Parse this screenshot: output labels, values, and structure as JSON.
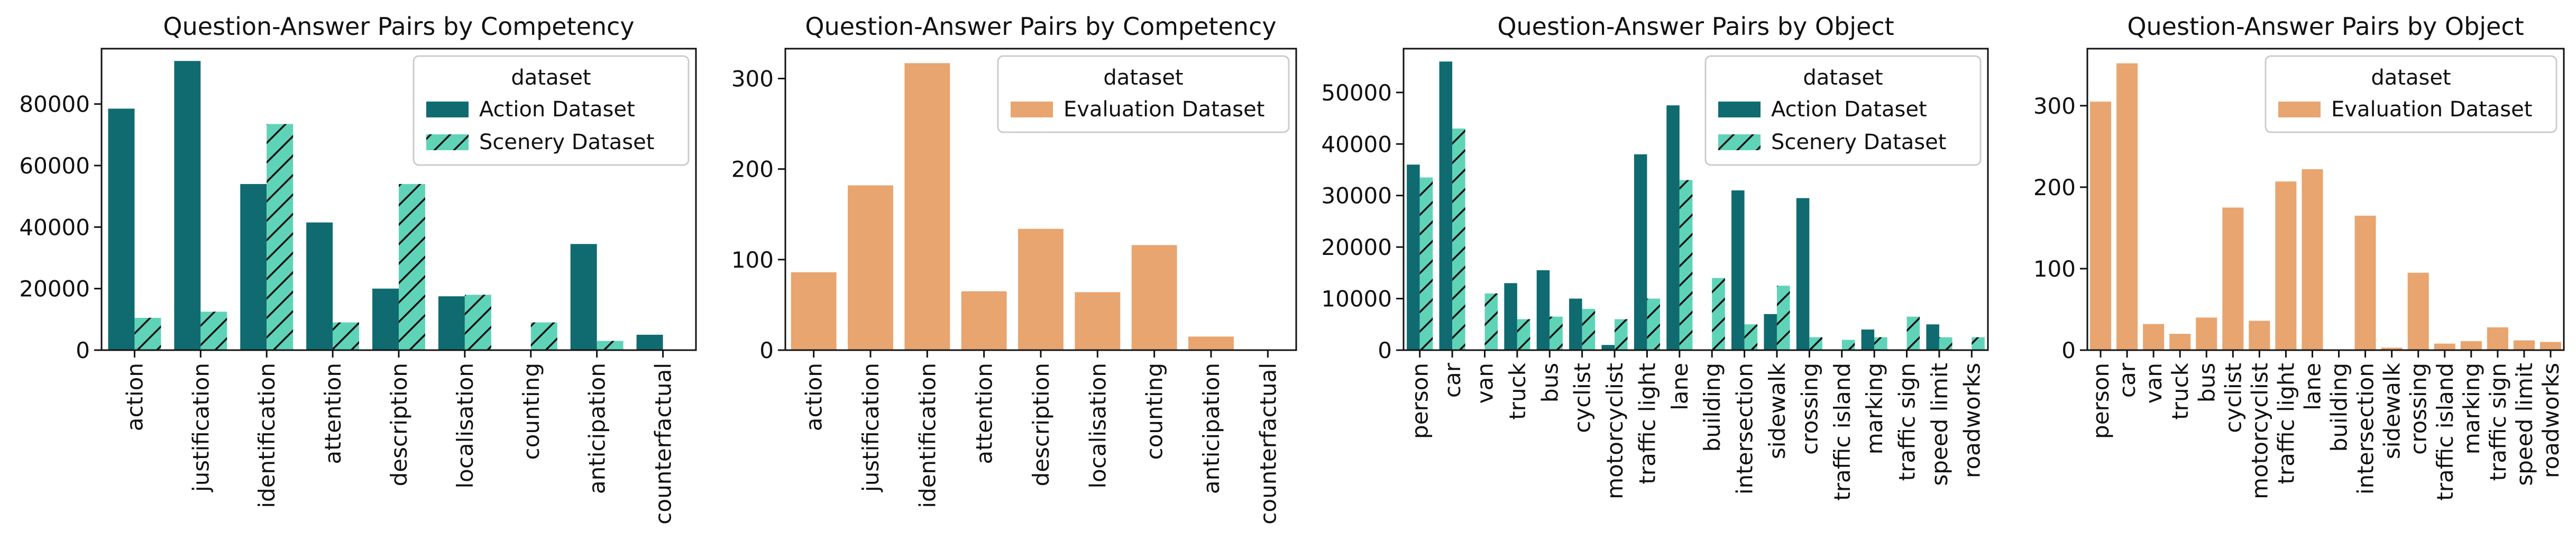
{
  "colors": {
    "action": "#0f6b70",
    "scenery": "#5fd3b8",
    "evaluation": "#e8a56f"
  },
  "legend_title": "dataset",
  "chart_data": [
    {
      "type": "bar",
      "title": "Question-Answer Pairs by Competency",
      "xlabel": "",
      "ylabel": "",
      "categories": [
        "action",
        "justification",
        "identification",
        "attention",
        "description",
        "localisation",
        "counting",
        "anticipation",
        "counterfactual"
      ],
      "series": [
        {
          "name": "Action Dataset",
          "values": [
            78500,
            94000,
            54000,
            41500,
            20000,
            17500,
            0,
            34500,
            5000
          ],
          "color": "#0f6b70",
          "hatch": false
        },
        {
          "name": "Scenery Dataset",
          "values": [
            10500,
            12500,
            73500,
            9000,
            54000,
            18000,
            9000,
            3000,
            0
          ],
          "color": "#5fd3b8",
          "hatch": true
        }
      ],
      "ylim": [
        0,
        98000
      ],
      "yticks": [
        0,
        20000,
        40000,
        60000,
        80000
      ],
      "ytick_labels": [
        "0",
        "20000",
        "40000",
        "60000",
        "80000"
      ],
      "legend": "top-right"
    },
    {
      "type": "bar",
      "title": "Question-Answer Pairs by Competency",
      "xlabel": "",
      "ylabel": "",
      "categories": [
        "action",
        "justification",
        "identification",
        "attention",
        "description",
        "localisation",
        "counting",
        "anticipation",
        "counterfactual"
      ],
      "series": [
        {
          "name": "Evaluation Dataset",
          "values": [
            86,
            182,
            317,
            65,
            134,
            64,
            116,
            15,
            0
          ],
          "color": "#e8a56f",
          "hatch": false
        }
      ],
      "ylim": [
        0,
        333
      ],
      "yticks": [
        0,
        100,
        200,
        300
      ],
      "ytick_labels": [
        "0",
        "100",
        "200",
        "300"
      ],
      "legend": "top-right"
    },
    {
      "type": "bar",
      "title": "Question-Answer Pairs by Object",
      "xlabel": "",
      "ylabel": "",
      "categories": [
        "person",
        "car",
        "van",
        "truck",
        "bus",
        "cyclist",
        "motorcyclist",
        "traffic light",
        "lane",
        "building",
        "intersection",
        "sidewalk",
        "crossing",
        "traffic island",
        "marking",
        "traffic sign",
        "speed limit",
        "roadworks"
      ],
      "series": [
        {
          "name": "Action Dataset",
          "values": [
            36000,
            56000,
            0,
            13000,
            15500,
            10000,
            1000,
            38000,
            47500,
            0,
            31000,
            7000,
            29500,
            0,
            4000,
            0,
            5000,
            0
          ],
          "color": "#0f6b70",
          "hatch": false
        },
        {
          "name": "Scenery Dataset",
          "values": [
            33500,
            43000,
            11000,
            6000,
            6500,
            8000,
            6000,
            10000,
            33000,
            14000,
            5000,
            12500,
            2500,
            2000,
            2500,
            6500,
            2500,
            2500
          ],
          "color": "#5fd3b8",
          "hatch": true
        }
      ],
      "ylim": [
        0,
        58500
      ],
      "yticks": [
        0,
        10000,
        20000,
        30000,
        40000,
        50000
      ],
      "ytick_labels": [
        "0",
        "10000",
        "20000",
        "30000",
        "40000",
        "50000"
      ],
      "legend": "top-right"
    },
    {
      "type": "bar",
      "title": "Question-Answer Pairs by Object",
      "xlabel": "",
      "ylabel": "",
      "categories": [
        "person",
        "car",
        "van",
        "truck",
        "bus",
        "cyclist",
        "motorcyclist",
        "traffic light",
        "lane",
        "building",
        "intersection",
        "sidewalk",
        "crossing",
        "traffic island",
        "marking",
        "traffic sign",
        "speed limit",
        "roadworks"
      ],
      "series": [
        {
          "name": "Evaluation Dataset",
          "values": [
            305,
            352,
            32,
            20,
            40,
            175,
            36,
            207,
            222,
            0,
            165,
            3,
            95,
            8,
            11,
            28,
            12,
            10
          ],
          "color": "#e8a56f",
          "hatch": false
        }
      ],
      "ylim": [
        0,
        370
      ],
      "yticks": [
        0,
        100,
        200,
        300
      ],
      "ytick_labels": [
        "0",
        "100",
        "200",
        "300"
      ],
      "legend": "top-right"
    }
  ]
}
